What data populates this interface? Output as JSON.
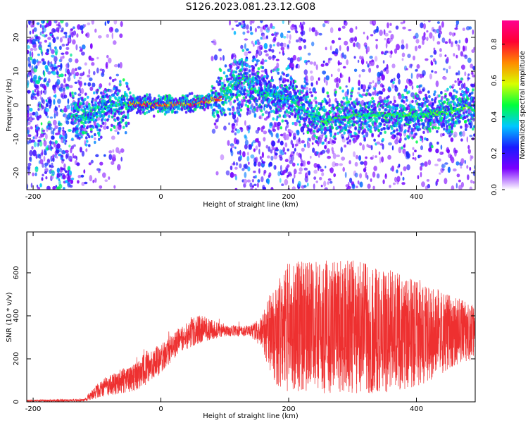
{
  "title": "S126.2023.081.23.12.G08",
  "chart_data": [
    {
      "type": "heatmap",
      "xlabel": "Height of straight line (km)",
      "ylabel": "Frequency (Hz)",
      "xlim": [
        -210,
        492
      ],
      "ylim": [
        -25,
        25
      ],
      "x_ticks": [
        -200,
        0,
        200,
        400
      ],
      "y_ticks": [
        -20,
        -10,
        0,
        10,
        20
      ],
      "colorbar": {
        "label": "Normalized spectral amplitude",
        "range": [
          0.0,
          0.93
        ],
        "ticks": [
          0.0,
          0.2,
          0.4,
          0.6,
          0.8
        ],
        "colors": [
          "#ffffff",
          "#7a00ff",
          "#1a1aff",
          "#00c8ff",
          "#00ff3c",
          "#d8ff00",
          "#ff8a00",
          "#ff0033",
          "#ff0090"
        ]
      },
      "ridge": {
        "x": [
          -140,
          -110,
          -80,
          -50,
          0,
          50,
          90,
          110,
          130,
          150,
          200,
          250,
          300,
          350,
          400,
          450,
          480,
          492
        ],
        "frequency": [
          -3,
          -4,
          0,
          0.5,
          0,
          0.5,
          1.5,
          5,
          8,
          4,
          2,
          -5,
          -3,
          -3,
          -3,
          -2,
          -0.5,
          -1.5
        ]
      }
    },
    {
      "type": "line",
      "xlabel": "Height of straight line (km)",
      "ylabel": "SNR (10 * v/v)",
      "xlim": [
        -210,
        492
      ],
      "ylim": [
        0,
        790
      ],
      "x_ticks": [
        -200,
        0,
        200,
        400
      ],
      "y_ticks": [
        0,
        200,
        400,
        600
      ],
      "color": "#ee3030",
      "envelope": {
        "x": [
          -210,
          -120,
          -100,
          -80,
          -40,
          -20,
          0,
          30,
          60,
          100,
          140,
          160,
          180,
          200,
          260,
          300,
          350,
          400,
          450,
          492
        ],
        "upper": [
          10,
          15,
          90,
          140,
          190,
          260,
          280,
          360,
          420,
          360,
          360,
          420,
          580,
          650,
          660,
          660,
          620,
          580,
          500,
          450
        ],
        "lower": [
          0,
          0,
          10,
          20,
          40,
          60,
          120,
          220,
          260,
          300,
          300,
          220,
          80,
          40,
          40,
          40,
          40,
          60,
          150,
          200
        ]
      }
    }
  ]
}
